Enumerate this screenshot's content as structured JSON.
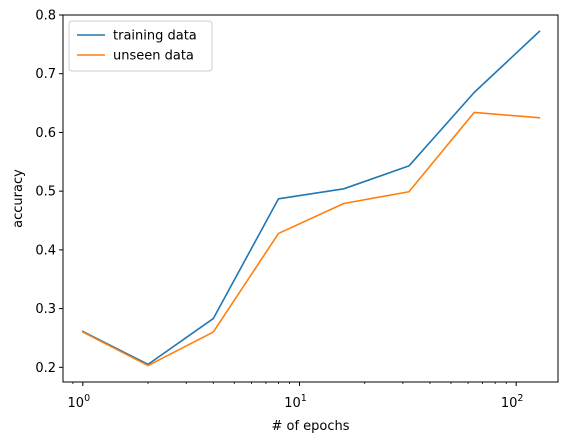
{
  "chart_data": {
    "type": "line",
    "xscale": "log",
    "x": [
      1,
      2,
      4,
      8,
      16,
      32,
      64,
      128
    ],
    "series": [
      {
        "name": "training data",
        "color": "#1f77b4",
        "values": [
          0.261,
          0.205,
          0.283,
          0.487,
          0.504,
          0.543,
          0.668,
          0.772
        ]
      },
      {
        "name": "unseen data",
        "color": "#ff7f0e",
        "values": [
          0.26,
          0.203,
          0.26,
          0.428,
          0.479,
          0.499,
          0.634,
          0.625
        ]
      }
    ],
    "xlabel": "# of epochs",
    "ylabel": "accuracy",
    "xticks": [
      {
        "base": "10",
        "exp": "0",
        "value": 1
      },
      {
        "base": "10",
        "exp": "1",
        "value": 10
      },
      {
        "base": "10",
        "exp": "2",
        "value": 100
      }
    ],
    "yticks": [
      "0.2",
      "0.3",
      "0.4",
      "0.5",
      "0.6",
      "0.7",
      "0.8"
    ],
    "xlim": [
      0.81,
      156
    ],
    "ylim": [
      0.175,
      0.8
    ],
    "legend_position": "upper-left",
    "grid": false
  }
}
